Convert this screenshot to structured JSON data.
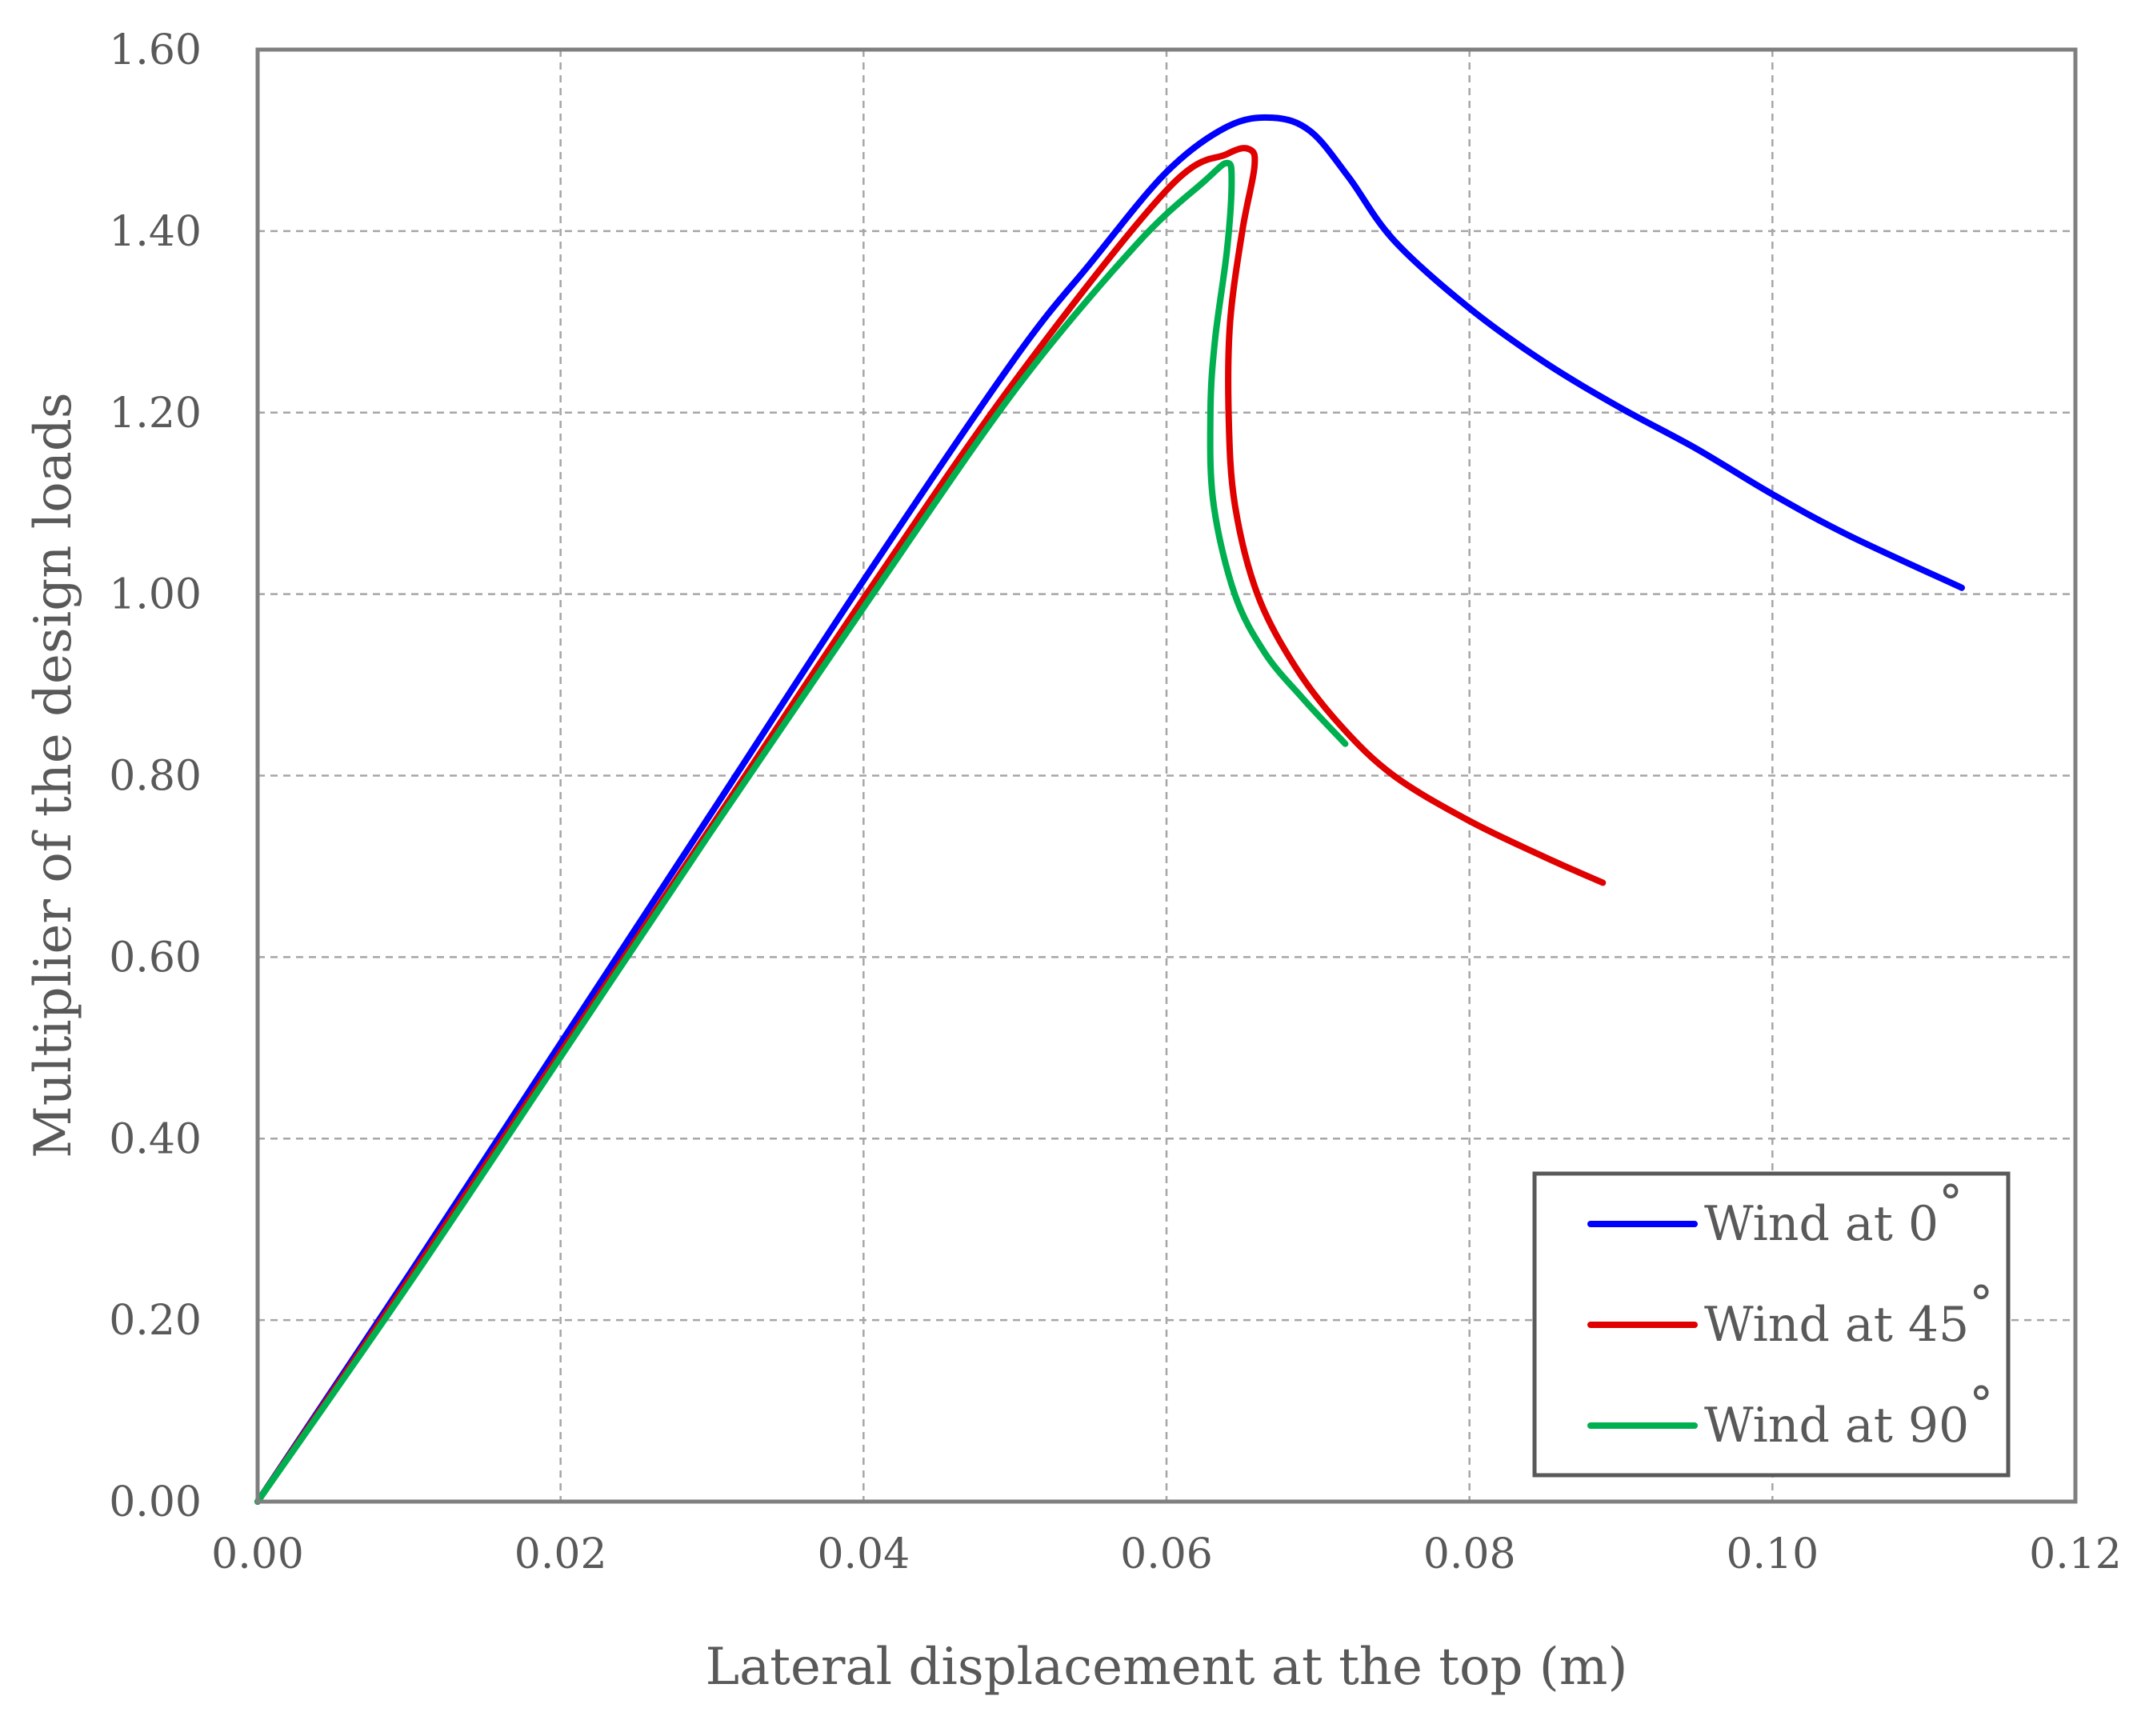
{
  "chart_data": {
    "type": "line",
    "title": "",
    "xlabel": "Lateral displacement at the top (m)",
    "ylabel": "Multiplier of the design loads",
    "xlim": [
      0,
      0.12
    ],
    "ylim": [
      0,
      1.6
    ],
    "xticks": [
      "0.00",
      "0.02",
      "0.04",
      "0.06",
      "0.08",
      "0.10",
      "0.12"
    ],
    "yticks": [
      "0.00",
      "0.20",
      "0.40",
      "0.60",
      "0.80",
      "1.00",
      "1.20",
      "1.40",
      "1.60"
    ],
    "grid": true,
    "legend_position": "bottom-right",
    "series": [
      {
        "name": "Wind at 0",
        "legend_label": "Wind at 0",
        "degree_symbol": "°",
        "color": "#0000ff",
        "x": [
          0,
          0.01,
          0.02,
          0.03,
          0.04,
          0.05,
          0.055,
          0.06,
          0.064,
          0.067,
          0.0695,
          0.072,
          0.075,
          0.08,
          0.085,
          0.09,
          0.095,
          0.1,
          0.105,
          0.1125
        ],
        "y": [
          0,
          0.25,
          0.505,
          0.76,
          1.015,
          1.26,
          1.365,
          1.465,
          1.515,
          1.525,
          1.51,
          1.46,
          1.39,
          1.315,
          1.255,
          1.205,
          1.16,
          1.11,
          1.065,
          1.007
        ]
      },
      {
        "name": "Wind at 45",
        "legend_label": "Wind at 45",
        "degree_symbol": "°",
        "color": "#e00000",
        "x": [
          0,
          0.01,
          0.02,
          0.03,
          0.04,
          0.05,
          0.06,
          0.064,
          0.0655,
          0.0658,
          0.065,
          0.0642,
          0.0641,
          0.0645,
          0.066,
          0.0685,
          0.0715,
          0.075,
          0.08,
          0.085,
          0.0888
        ],
        "y": [
          0,
          0.245,
          0.495,
          0.745,
          0.995,
          1.235,
          1.445,
          1.485,
          1.49,
          1.47,
          1.4,
          1.3,
          1.2,
          1.1,
          1.0,
          0.92,
          0.855,
          0.8,
          0.75,
          0.71,
          0.682
        ]
      },
      {
        "name": "Wind at 90",
        "legend_label": "Wind at 90",
        "degree_symbol": "°",
        "color": "#00b050",
        "x": [
          0,
          0.01,
          0.02,
          0.03,
          0.04,
          0.05,
          0.058,
          0.0625,
          0.064,
          0.0643,
          0.064,
          0.0632,
          0.0629,
          0.0631,
          0.0645,
          0.0665,
          0.069,
          0.0718
        ],
        "y": [
          0,
          0.24,
          0.49,
          0.74,
          0.985,
          1.225,
          1.385,
          1.455,
          1.475,
          1.455,
          1.38,
          1.28,
          1.2,
          1.1,
          1.0,
          0.935,
          0.885,
          0.835
        ]
      }
    ]
  }
}
